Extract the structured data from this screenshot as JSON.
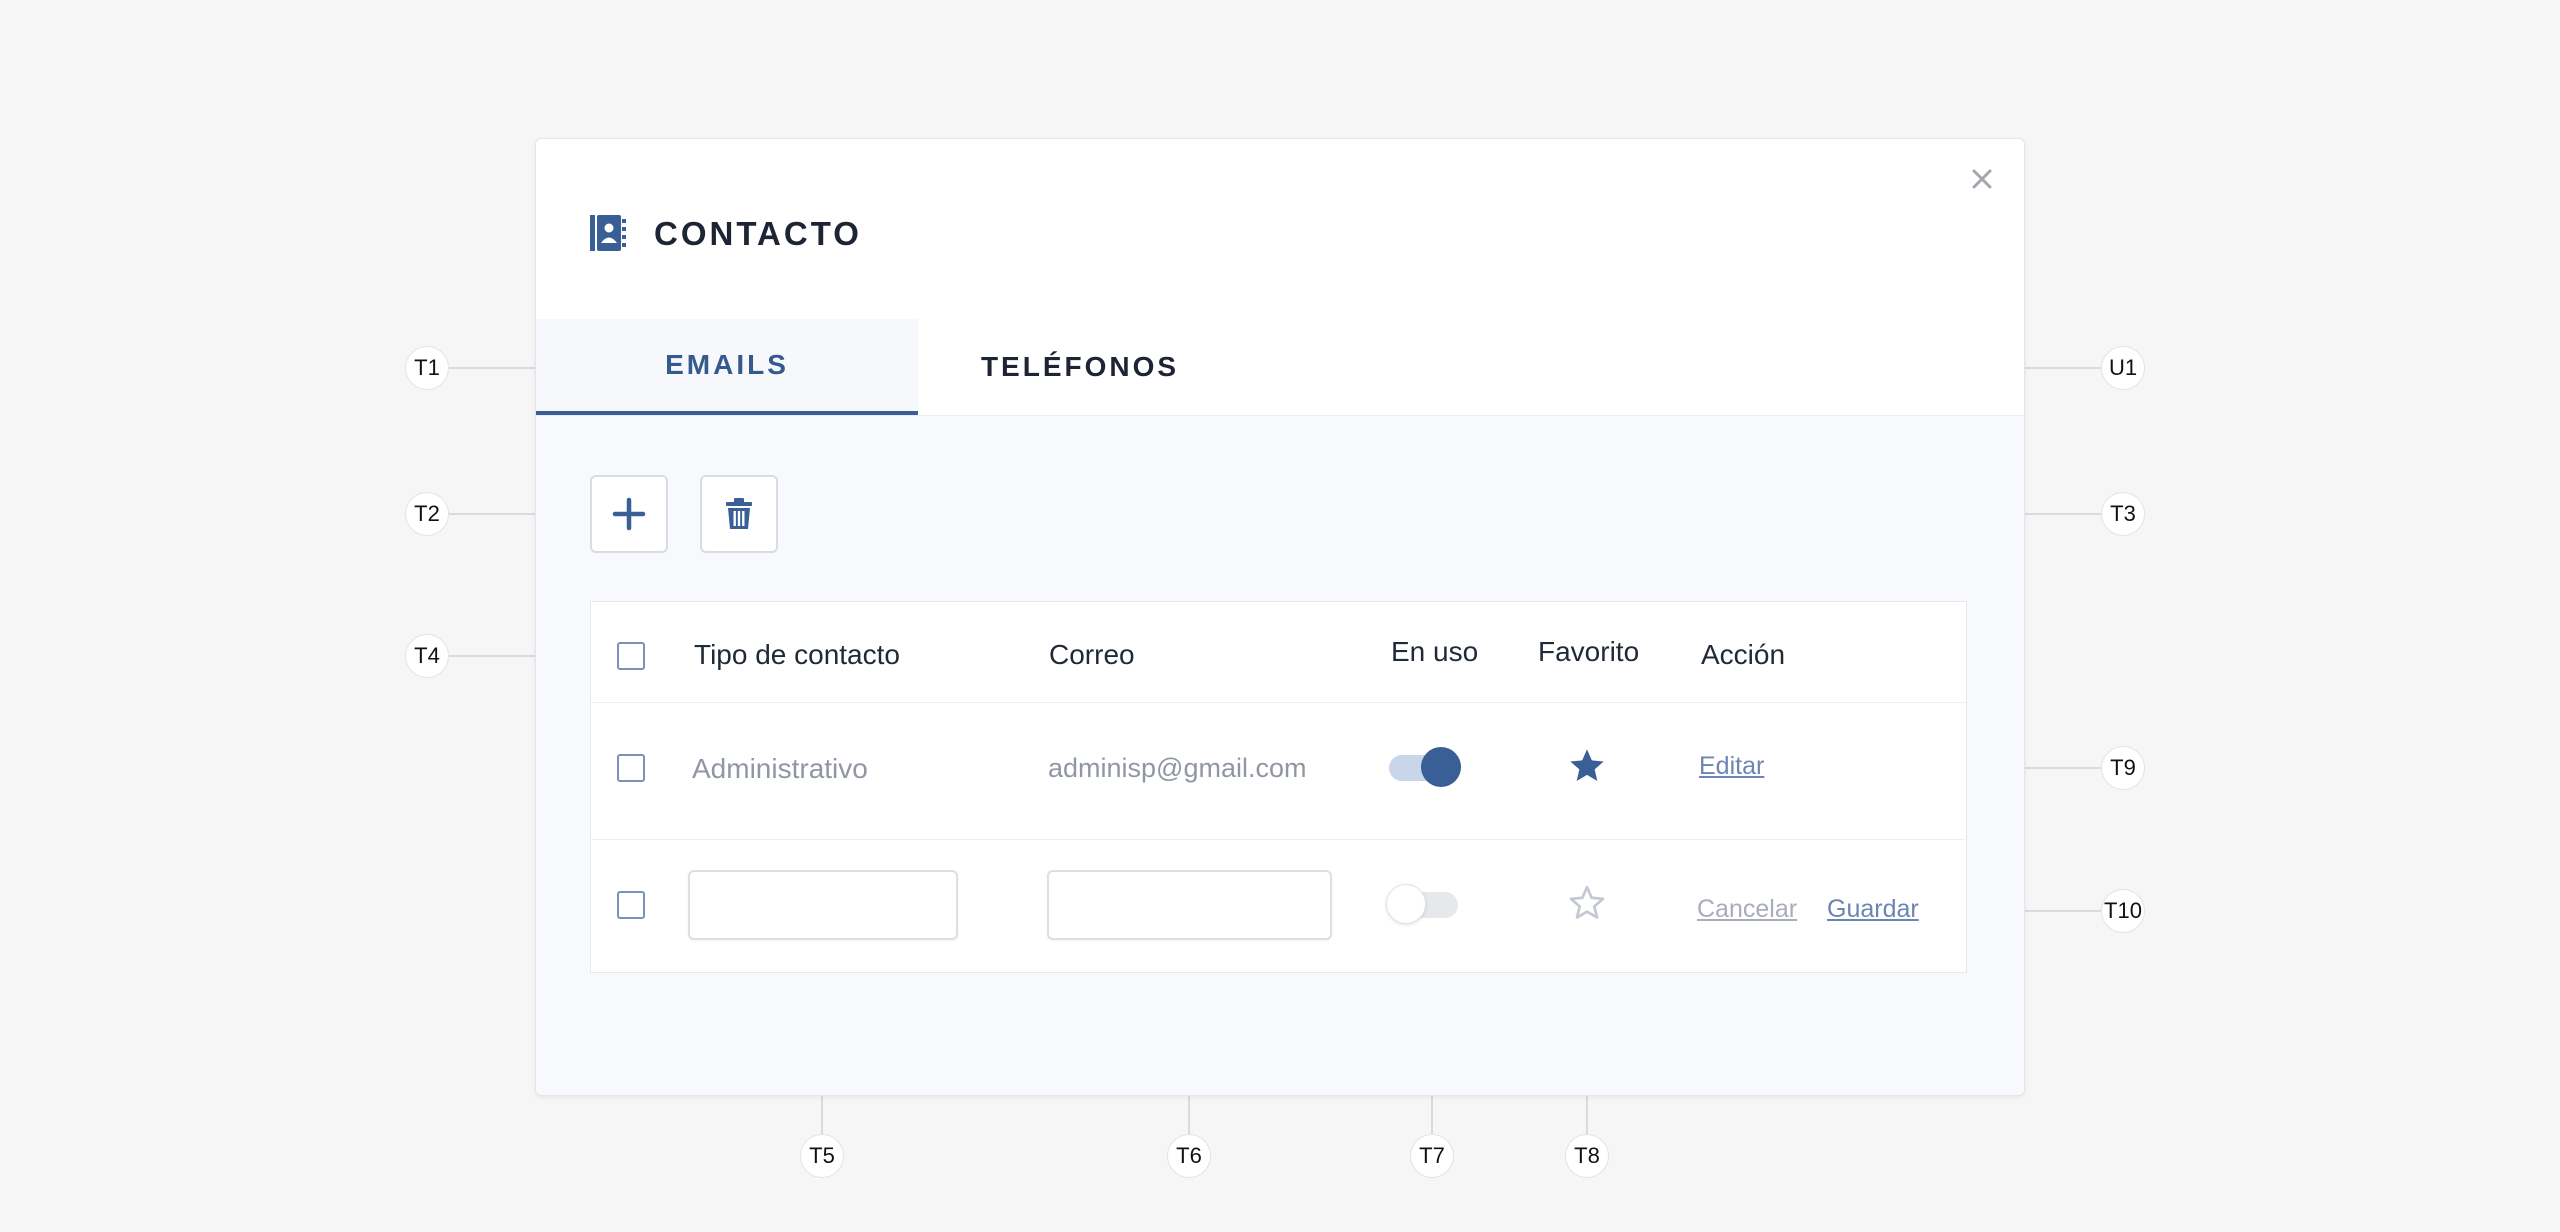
{
  "modal": {
    "title": "CONTACTO",
    "icon": "contact-book-icon",
    "close_icon": "close-icon"
  },
  "tabs": [
    {
      "label": "EMAILS",
      "active": true
    },
    {
      "label": "TELÉFONOS",
      "active": false
    }
  ],
  "toolbar": {
    "add_icon": "plus-icon",
    "delete_icon": "trash-icon"
  },
  "table": {
    "headers": {
      "type": "Tipo de contacto",
      "email": "Correo",
      "in_use": "En uso",
      "favorite": "Favorito",
      "action": "Acción"
    },
    "rows": [
      {
        "type": "Administrativo",
        "email": "adminisp@gmail.com",
        "in_use": true,
        "favorite": true,
        "action_edit": "Editar"
      }
    ],
    "new_row": {
      "type_value": "",
      "email_value": "",
      "in_use": false,
      "favorite": false,
      "cancel_label": "Cancelar",
      "save_label": "Guardar"
    }
  },
  "callouts": {
    "t1": "T1",
    "u1": "U1",
    "t2": "T2",
    "t3": "T3",
    "t4": "T4",
    "t5": "T5",
    "t6": "T6",
    "t7": "T7",
    "t8": "T8",
    "t9": "T9",
    "t10": "T10"
  },
  "colors": {
    "accent": "#3a5f96",
    "accent_light": "#c9d5e8",
    "background": "#f6f6f7",
    "muted_text": "#9096a3"
  }
}
